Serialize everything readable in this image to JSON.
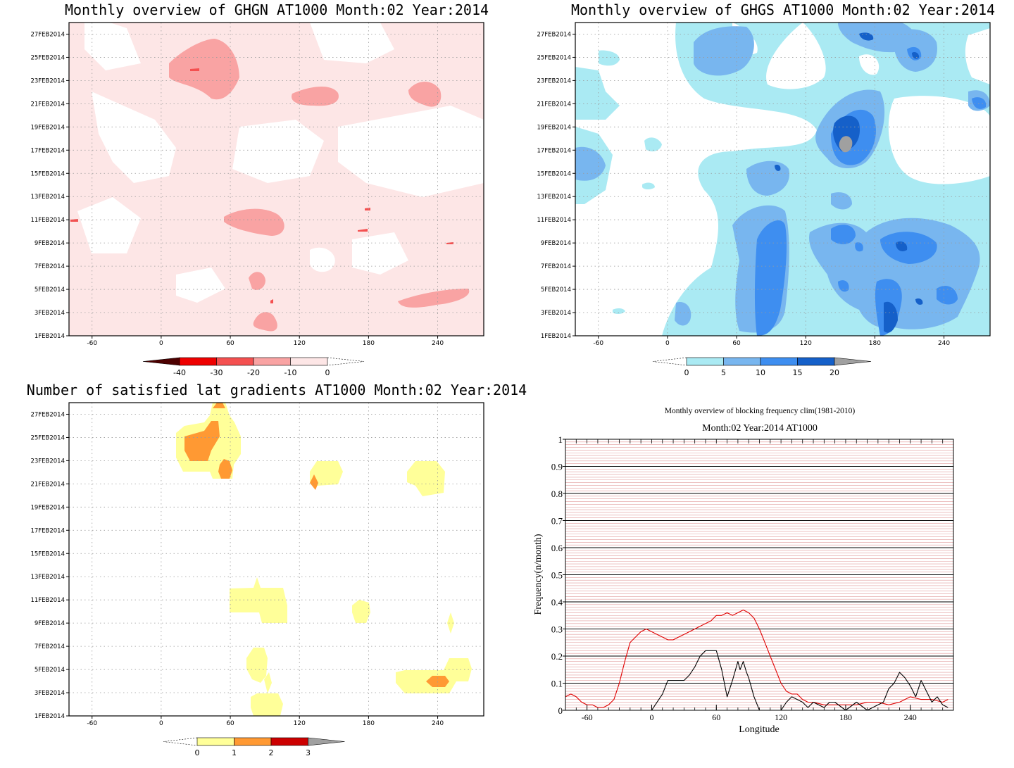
{
  "colors": {
    "pink_light": "#fde6e6",
    "pink_mid": "#f9a3a3",
    "red": "#f45050",
    "red_dark": "#ee0000",
    "dark_red": "#4d0000",
    "cyan_light": "#aaeaf3",
    "blue_light": "#78b6ef",
    "blue_mid": "#3e8ef0",
    "blue_dark": "#1560c9",
    "grey": "#a0a0a0",
    "yellow": "#ffff99",
    "orange": "#ff9933",
    "darkred": "#cc0000",
    "climatology_line": "#e00000",
    "observed_line": "#000000"
  },
  "chart_data": [
    {
      "type": "heatmap",
      "title": "Monthly overview of GHGN AT1000 Month:02 Year:2014",
      "x_ticks": [
        "-60",
        "0",
        "60",
        "120",
        "180",
        "240"
      ],
      "x_values": [
        -60,
        0,
        60,
        120,
        180,
        240
      ],
      "xlim": [
        -80,
        280
      ],
      "y_ticks": [
        "1FEB2014",
        "3FEB2014",
        "5FEB2014",
        "7FEB2014",
        "9FEB2014",
        "11FEB2014",
        "13FEB2014",
        "15FEB2014",
        "17FEB2014",
        "19FEB2014",
        "21FEB2014",
        "23FEB2014",
        "25FEB2014",
        "27FEB2014"
      ],
      "ylim_days": [
        1,
        28
      ],
      "colorbar": {
        "labels": [
          "-40",
          "-30",
          "-20",
          "-10",
          "0"
        ],
        "levels": [
          -40,
          -30,
          -20,
          -10,
          0
        ],
        "colors": [
          "#4d0000",
          "#ee0000",
          "#f45050",
          "#f9a3a3",
          "#fde6e6"
        ]
      },
      "features": [
        {
          "lon": 55,
          "day": 25.3,
          "value": -15
        },
        {
          "lon": 130,
          "day": 21.6,
          "value": -12
        },
        {
          "lon": 225,
          "day": 21.9,
          "value": -12
        },
        {
          "lon": 85,
          "day": 11.2,
          "value": -12
        },
        {
          "lon": 230,
          "day": 3.8,
          "value": -12
        },
        {
          "lon": 90,
          "day": 2.3,
          "value": -12
        },
        {
          "lon": 85,
          "day": 5.7,
          "value": -12
        }
      ]
    },
    {
      "type": "heatmap",
      "title": "Monthly overview of GHGS AT1000 Month:02 Year:2014",
      "x_ticks": [
        "-60",
        "0",
        "60",
        "120",
        "180",
        "240"
      ],
      "x_values": [
        -60,
        0,
        60,
        120,
        180,
        240
      ],
      "xlim": [
        -80,
        280
      ],
      "y_ticks": [
        "1FEB2014",
        "3FEB2014",
        "5FEB2014",
        "7FEB2014",
        "9FEB2014",
        "11FEB2014",
        "13FEB2014",
        "15FEB2014",
        "17FEB2014",
        "19FEB2014",
        "21FEB2014",
        "23FEB2014",
        "25FEB2014",
        "27FEB2014"
      ],
      "ylim_days": [
        1,
        28
      ],
      "colorbar": {
        "labels": [
          "0",
          "5",
          "10",
          "15",
          "20"
        ],
        "levels": [
          0,
          5,
          10,
          15,
          20
        ],
        "colors": [
          "#aaeaf3",
          "#78b6ef",
          "#3e8ef0",
          "#1560c9",
          "#a0a0a0"
        ]
      },
      "features": [
        {
          "lon": 155,
          "day": 17.6,
          "value": 22
        },
        {
          "lon": 160,
          "day": 18.5,
          "value": 16
        },
        {
          "lon": 90,
          "day": 6,
          "value": 12
        },
        {
          "lon": 210,
          "day": 8,
          "value": 12
        },
        {
          "lon": 215,
          "day": 25,
          "value": 12
        },
        {
          "lon": 25,
          "day": 25,
          "value": 8
        }
      ]
    },
    {
      "type": "heatmap",
      "title": "Number of satisfied lat gradients AT1000 Month:02 Year:2014",
      "x_ticks": [
        "-60",
        "0",
        "60",
        "120",
        "180",
        "240"
      ],
      "x_values": [
        -60,
        0,
        60,
        120,
        180,
        240
      ],
      "xlim": [
        -80,
        280
      ],
      "y_ticks": [
        "1FEB2014",
        "3FEB2014",
        "5FEB2014",
        "7FEB2014",
        "9FEB2014",
        "11FEB2014",
        "13FEB2014",
        "15FEB2014",
        "17FEB2014",
        "19FEB2014",
        "21FEB2014",
        "23FEB2014",
        "25FEB2014",
        "27FEB2014"
      ],
      "ylim_days": [
        1,
        28
      ],
      "colorbar": {
        "labels": [
          "0",
          "1",
          "2",
          "3"
        ],
        "levels": [
          0,
          1,
          2,
          3
        ],
        "colors": [
          "#ffff99",
          "#ff9933",
          "#cc0000",
          "#a0a0a0"
        ]
      },
      "features": [
        {
          "lon": 35,
          "day": 24.8,
          "value": 2
        },
        {
          "lon": 55,
          "day": 22.1,
          "value": 2
        },
        {
          "lon": 133,
          "day": 21,
          "value": 2
        },
        {
          "lon": 240,
          "day": 4,
          "value": 2
        },
        {
          "lon": 80,
          "day": 10.5,
          "value": 1
        },
        {
          "lon": 175,
          "day": 10,
          "value": 1
        },
        {
          "lon": 245,
          "day": 4.5,
          "value": 1
        },
        {
          "lon": 140,
          "day": 22,
          "value": 1
        },
        {
          "lon": 235,
          "day": 22,
          "value": 1
        },
        {
          "lon": 85,
          "day": 2,
          "value": 1
        }
      ]
    },
    {
      "type": "line",
      "title": "Monthly overview of blocking frequency clim(1981-2010)",
      "subtitle": "Month:02 Year:2014  AT1000",
      "xlabel": "Longitude",
      "ylabel": "Frequency(n/month)",
      "xlim": [
        -80,
        280
      ],
      "ylim": [
        0,
        1
      ],
      "x_ticks": [
        "-60",
        "0",
        "60",
        "120",
        "180",
        "240"
      ],
      "x_tick_values": [
        -60,
        0,
        60,
        120,
        180,
        240
      ],
      "y_ticks": [
        "0",
        "0.1",
        "0.2",
        "0.3",
        "0.4",
        "0.5",
        "0.6",
        "0.7",
        "0.8",
        "0.9",
        "1"
      ],
      "y_tick_values": [
        0,
        0.1,
        0.2,
        0.3,
        0.4,
        0.5,
        0.6,
        0.7,
        0.8,
        0.9,
        1
      ],
      "series": [
        {
          "color": "#e00000",
          "x": [
            -80,
            -75,
            -70,
            -65,
            -60,
            -55,
            -50,
            -45,
            -40,
            -35,
            -30,
            -25,
            -20,
            -15,
            -10,
            -5,
            0,
            5,
            10,
            15,
            20,
            25,
            30,
            35,
            40,
            45,
            50,
            55,
            60,
            65,
            70,
            75,
            80,
            85,
            90,
            95,
            100,
            105,
            110,
            115,
            120,
            125,
            130,
            135,
            140,
            145,
            150,
            160,
            170,
            180,
            190,
            200,
            210,
            220,
            230,
            240,
            250,
            260,
            270,
            275
          ],
          "values": [
            0.05,
            0.06,
            0.05,
            0.03,
            0.02,
            0.02,
            0.01,
            0.01,
            0.02,
            0.04,
            0.1,
            0.18,
            0.25,
            0.27,
            0.29,
            0.3,
            0.29,
            0.28,
            0.27,
            0.26,
            0.26,
            0.27,
            0.28,
            0.29,
            0.3,
            0.31,
            0.32,
            0.33,
            0.35,
            0.35,
            0.36,
            0.35,
            0.36,
            0.37,
            0.36,
            0.34,
            0.3,
            0.25,
            0.2,
            0.15,
            0.1,
            0.07,
            0.06,
            0.06,
            0.04,
            0.03,
            0.03,
            0.02,
            0.02,
            0.02,
            0.02,
            0.03,
            0.03,
            0.02,
            0.03,
            0.05,
            0.04,
            0.04,
            0.03,
            0.04
          ]
        },
        {
          "color": "#000000",
          "x": [
            -80,
            -10,
            0,
            10,
            15,
            30,
            35,
            40,
            45,
            50,
            60,
            65,
            70,
            75,
            80,
            82,
            85,
            88,
            90,
            95,
            100,
            120,
            125,
            130,
            140,
            145,
            150,
            160,
            165,
            170,
            180,
            190,
            200,
            210,
            215,
            220,
            225,
            230,
            235,
            240,
            245,
            250,
            255,
            260,
            265,
            270,
            275
          ],
          "values": [
            0,
            0,
            0,
            0.06,
            0.11,
            0.11,
            0.13,
            0.16,
            0.2,
            0.22,
            0.22,
            0.15,
            0.05,
            0.11,
            0.18,
            0.15,
            0.18,
            0.14,
            0.12,
            0.05,
            0,
            0,
            0.03,
            0.05,
            0.03,
            0.01,
            0.03,
            0.01,
            0.03,
            0.03,
            0,
            0.03,
            0,
            0.02,
            0.03,
            0.08,
            0.1,
            0.14,
            0.12,
            0.09,
            0.05,
            0.11,
            0.07,
            0.03,
            0.05,
            0.02,
            0.01
          ]
        }
      ]
    }
  ]
}
